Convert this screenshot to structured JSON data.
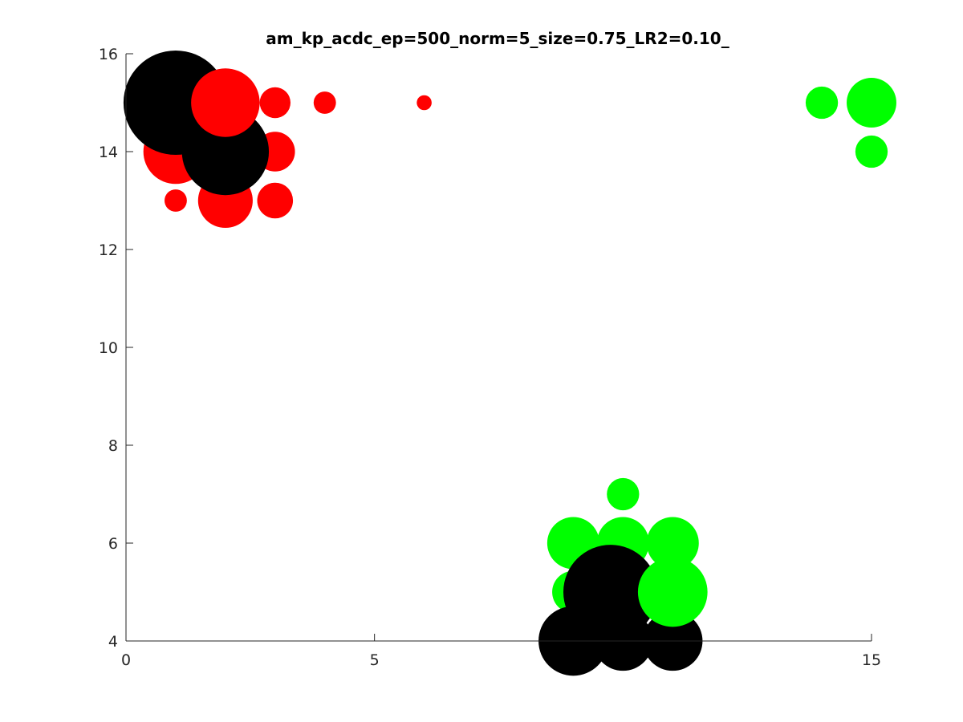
{
  "chart_data": {
    "type": "scatter",
    "title": "am_kp_acdc_ep=500_norm=5_size=0.75_LR2=0.10_",
    "xlabel": "",
    "ylabel": "",
    "xlim": [
      0,
      15
    ],
    "ylim": [
      4,
      16
    ],
    "x_ticks": [
      0,
      5,
      15
    ],
    "x_tick_labels": [
      "0",
      "5",
      "15"
    ],
    "y_ticks": [
      4,
      6,
      8,
      10,
      12,
      14,
      16
    ],
    "y_tick_labels": [
      "4",
      "6",
      "8",
      "10",
      "12",
      "14",
      "16"
    ],
    "grid": false,
    "legend": "none",
    "colors": {
      "class_a": "#ff0000",
      "class_b": "#00ff00",
      "centroid": "#000000"
    },
    "series": [
      {
        "color": "#ff0000",
        "points": [
          {
            "x": 1,
            "y": 14,
            "size": 1.3
          },
          {
            "x": 1,
            "y": 13,
            "size": 0.45
          },
          {
            "x": 2,
            "y": 13,
            "size": 1.1
          },
          {
            "x": 3,
            "y": 13,
            "size": 0.72
          },
          {
            "x": 3,
            "y": 14,
            "size": 0.8
          },
          {
            "x": 3,
            "y": 15,
            "size": 0.62
          },
          {
            "x": 4,
            "y": 15,
            "size": 0.45
          },
          {
            "x": 6,
            "y": 15,
            "size": 0.3
          }
        ]
      },
      {
        "color": "#00ff00",
        "points": [
          {
            "x": 14,
            "y": 15,
            "size": 0.65
          },
          {
            "x": 15,
            "y": 15,
            "size": 1.0
          },
          {
            "x": 15,
            "y": 14,
            "size": 0.65
          },
          {
            "x": 10,
            "y": 7,
            "size": 0.65
          },
          {
            "x": 9,
            "y": 6,
            "size": 1.05
          },
          {
            "x": 10,
            "y": 6,
            "size": 1.05
          },
          {
            "x": 11,
            "y": 6,
            "size": 1.05
          },
          {
            "x": 9,
            "y": 5,
            "size": 0.85
          }
        ]
      },
      {
        "color": "#000000",
        "points": [
          {
            "x": 1,
            "y": 15,
            "size": 2.1
          },
          {
            "x": 2,
            "y": 14,
            "size": 1.75
          },
          {
            "x": 9,
            "y": 4,
            "size": 1.4
          },
          {
            "x": 10,
            "y": 4,
            "size": 1.2
          },
          {
            "x": 11,
            "y": 4,
            "size": 1.2
          },
          {
            "x": 9.75,
            "y": 5,
            "size": 1.9
          }
        ]
      },
      {
        "color": "#ff0000",
        "points": [
          {
            "x": 2,
            "y": 15,
            "size": 1.38
          }
        ]
      },
      {
        "color": "#00ff00",
        "points": [
          {
            "x": 11,
            "y": 5,
            "size": 1.4
          }
        ]
      }
    ]
  }
}
